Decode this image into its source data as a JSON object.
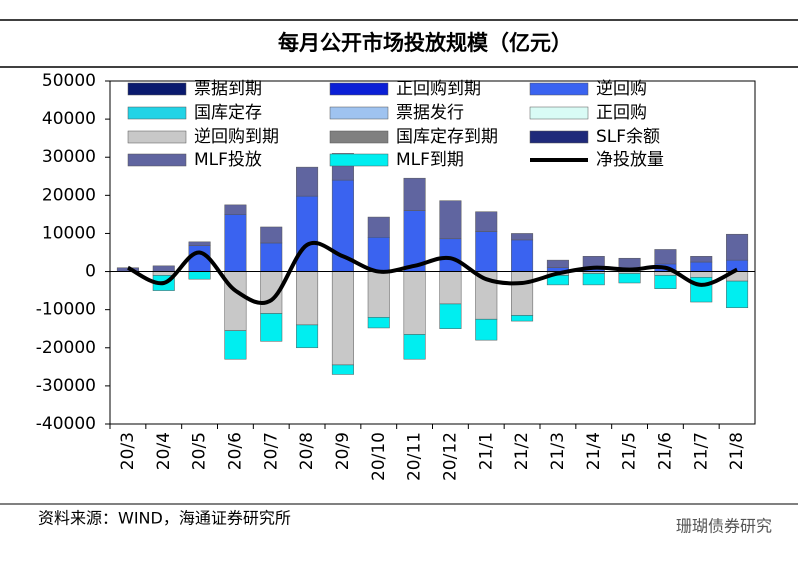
{
  "chart_data": {
    "type": "bar",
    "stacked": true,
    "title": "每月公开市场投放规模（亿元）",
    "source": "资料来源：WIND，海通证券研究所",
    "watermark": "珊瑚债券研究",
    "categories": [
      "20/3",
      "20/4",
      "20/5",
      "20/6",
      "20/7",
      "20/8",
      "20/9",
      "20/10",
      "20/11",
      "20/12",
      "21/1",
      "21/2",
      "21/3",
      "21/4",
      "21/5",
      "21/6",
      "21/7",
      "21/8"
    ],
    "ylim": [
      -40000,
      50000
    ],
    "yticks": [
      -40000,
      -30000,
      -20000,
      -10000,
      0,
      10000,
      20000,
      30000,
      40000,
      50000
    ],
    "series": [
      {
        "name": "票据到期",
        "color": "#0a1a6e",
        "values": [
          0,
          0,
          0,
          0,
          0,
          0,
          0,
          0,
          0,
          0,
          0,
          0,
          0,
          0,
          0,
          0,
          0,
          0
        ]
      },
      {
        "name": "正回购到期",
        "color": "#0b1fd6",
        "values": [
          0,
          0,
          0,
          0,
          0,
          0,
          0,
          0,
          0,
          0,
          0,
          0,
          0,
          0,
          0,
          0,
          0,
          0
        ]
      },
      {
        "name": "逆回购",
        "color": "#3a63f0",
        "values": [
          0,
          0,
          6800,
          15000,
          7500,
          19800,
          24000,
          9000,
          16000,
          8600,
          10500,
          8300,
          1000,
          1000,
          1000,
          2000,
          2500,
          3000
        ]
      },
      {
        "name": "国库定存",
        "color": "#22d3e6",
        "values": [
          0,
          0,
          0,
          0,
          0,
          0,
          0,
          0,
          0,
          0,
          0,
          0,
          0,
          0,
          0,
          0,
          0,
          0
        ]
      },
      {
        "name": "票据发行",
        "color": "#9fc3f0",
        "values": [
          0,
          0,
          0,
          0,
          0,
          0,
          0,
          0,
          0,
          0,
          0,
          0,
          0,
          0,
          0,
          0,
          0,
          0
        ]
      },
      {
        "name": "正回购",
        "color": "#d9fbf5",
        "values": [
          0,
          0,
          0,
          0,
          0,
          0,
          0,
          0,
          0,
          0,
          0,
          0,
          0,
          0,
          0,
          0,
          0,
          0
        ]
      },
      {
        "name": "逆回购到期",
        "color": "#c8c8c8",
        "values": [
          0,
          -1000,
          0,
          -15500,
          -11000,
          -14000,
          -24500,
          -12000,
          -16500,
          -8500,
          -12500,
          -11500,
          -1000,
          -500,
          -500,
          -1000,
          -1500,
          -2500
        ]
      },
      {
        "name": "国库定存到期",
        "color": "#808080",
        "values": [
          0,
          0,
          0,
          0,
          0,
          0,
          0,
          0,
          0,
          0,
          0,
          0,
          0,
          0,
          0,
          0,
          0,
          0
        ]
      },
      {
        "name": "SLF余额",
        "color": "#1f2a7a",
        "values": [
          0,
          0,
          0,
          0,
          0,
          0,
          0,
          0,
          0,
          0,
          0,
          0,
          0,
          0,
          0,
          0,
          0,
          0
        ]
      },
      {
        "name": "MLF投放",
        "color": "#6065a0",
        "values": [
          1000,
          1500,
          1000,
          2500,
          4200,
          7600,
          7000,
          5300,
          8500,
          10000,
          5200,
          1700,
          2000,
          3000,
          2500,
          3800,
          1500,
          6800
        ]
      },
      {
        "name": "MLF到期",
        "color": "#00eef0",
        "values": [
          0,
          -4000,
          -2000,
          -7500,
          -7300,
          -6000,
          -2500,
          -2800,
          -6500,
          -6500,
          -5500,
          -1500,
          -2500,
          -3000,
          -2500,
          -3500,
          -6500,
          -7000
        ]
      },
      {
        "name": "净投放量",
        "color": "#000000",
        "type": "line",
        "values": [
          1000,
          -3000,
          5000,
          -5000,
          -7500,
          7000,
          4000,
          0,
          1500,
          3500,
          -2000,
          -3000,
          -500,
          1000,
          500,
          1000,
          -3500,
          500
        ]
      }
    ]
  }
}
